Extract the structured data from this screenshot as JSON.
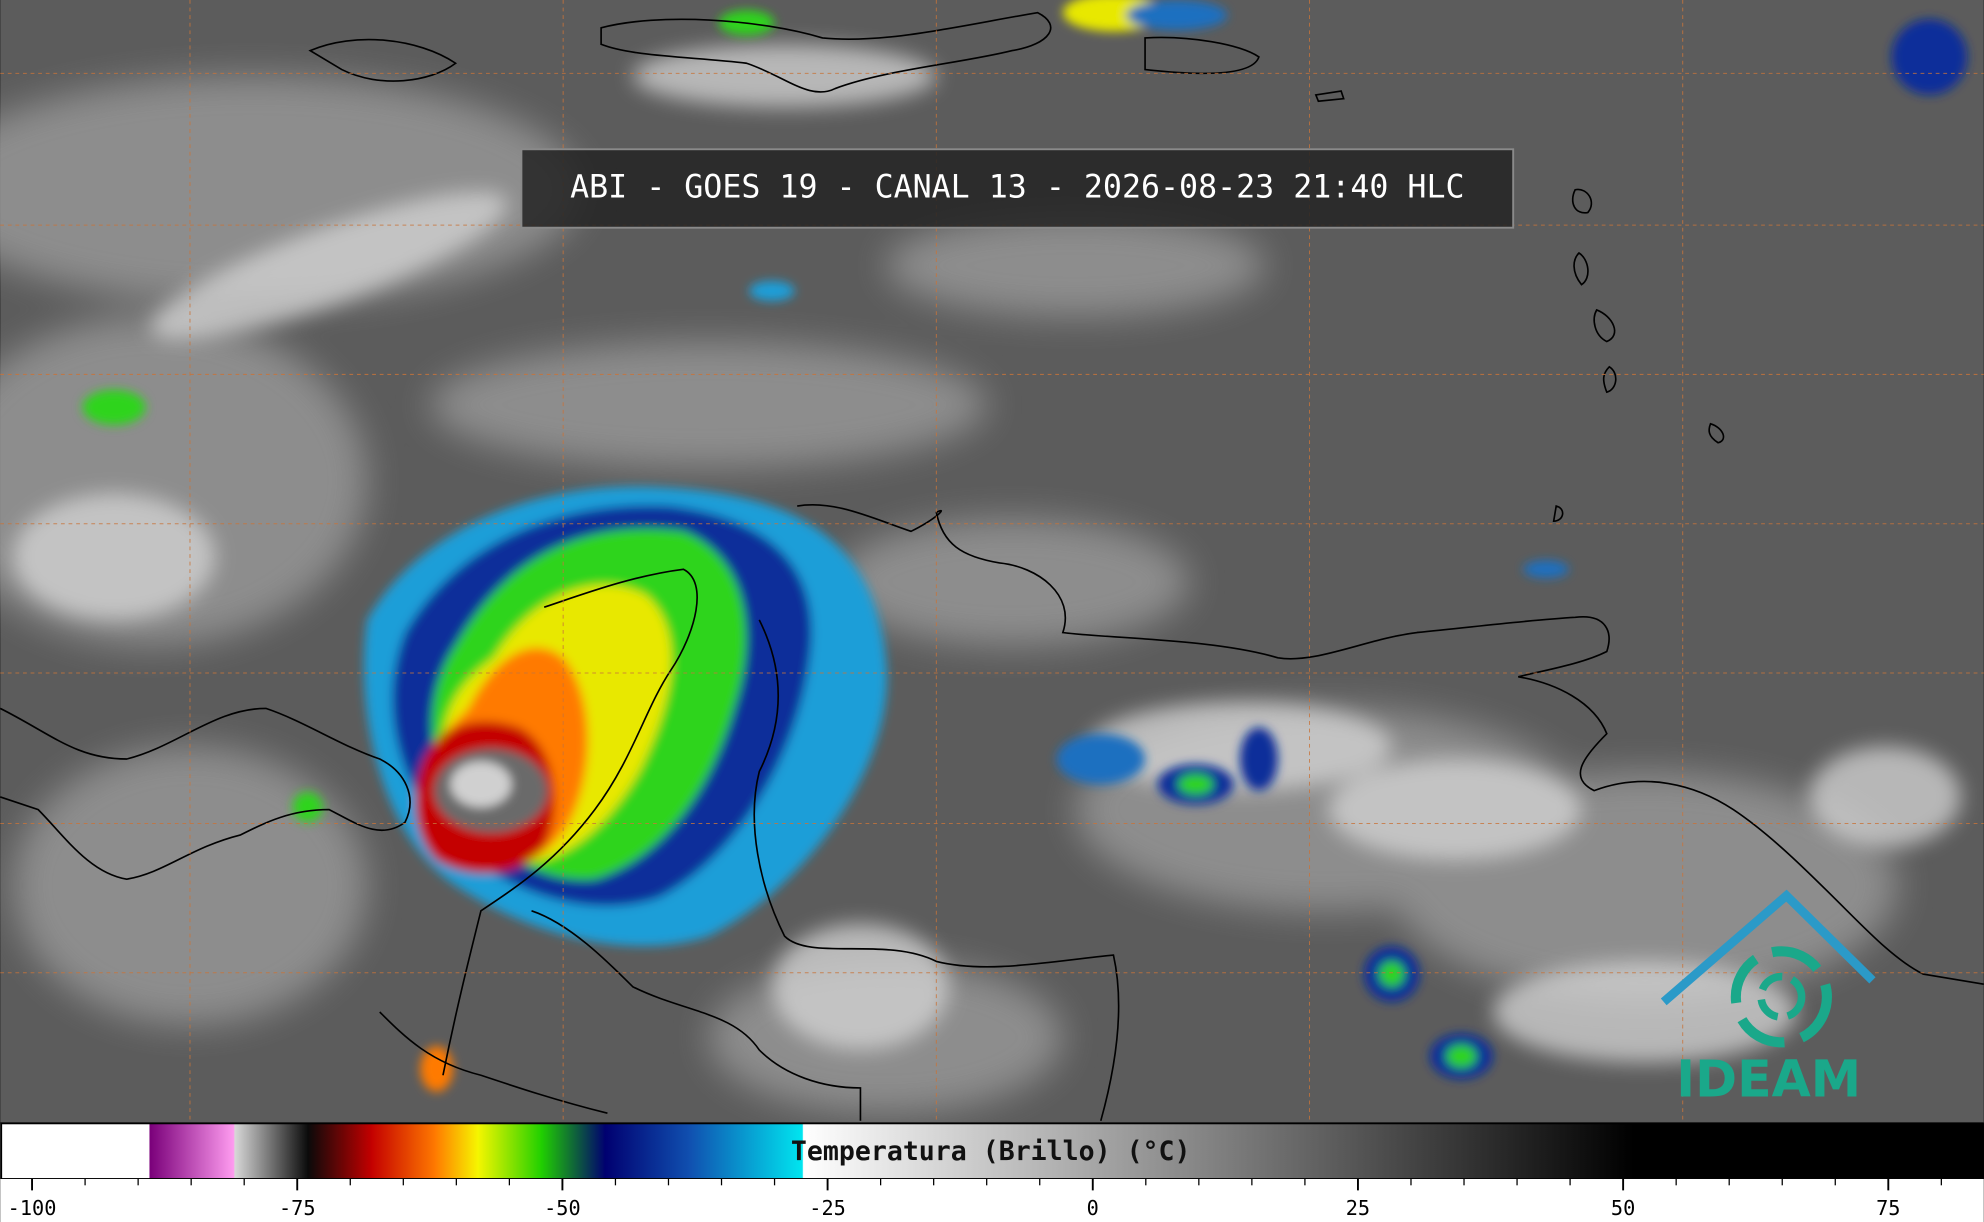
{
  "header": {
    "title": "ABI - GOES 19 - CANAL 13 - 2026-08-23 21:40 HLC"
  },
  "logo": {
    "text": "IDEAM",
    "color": "#1aa88a"
  },
  "colorbar": {
    "label": "Temperatura (Brillo) (°C)",
    "lim": [
      -103,
      84
    ],
    "ticks": [
      -100,
      -75,
      -50,
      -25,
      0,
      25,
      50,
      75
    ],
    "stops": [
      {
        "value": -103,
        "color": "#ffffff"
      },
      {
        "value": -89,
        "color": "#ffffff"
      },
      {
        "value": -88.9,
        "color": "#7a007a"
      },
      {
        "value": -81,
        "color": "#ff9cf0"
      },
      {
        "value": -80.9,
        "color": "#d8d8d8"
      },
      {
        "value": -74,
        "color": "#0a0a0a"
      },
      {
        "value": -68,
        "color": "#c40000"
      },
      {
        "value": -62,
        "color": "#ff7a00"
      },
      {
        "value": -58,
        "color": "#f6f600"
      },
      {
        "value": -52,
        "color": "#20d000"
      },
      {
        "value": -46,
        "color": "#000070"
      },
      {
        "value": -38,
        "color": "#1050b0"
      },
      {
        "value": -27.4,
        "color": "#00e6f0"
      },
      {
        "value": -27.3,
        "color": "#ffffff"
      },
      {
        "value": 51,
        "color": "#000000"
      },
      {
        "value": 84,
        "color": "#000000"
      }
    ]
  }
}
